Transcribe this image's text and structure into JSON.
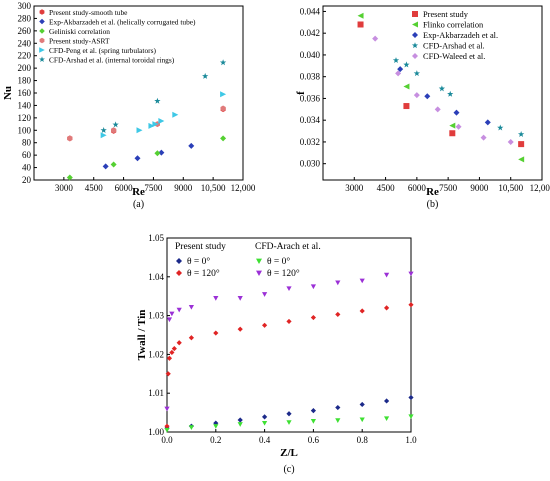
{
  "chart_data": [
    {
      "type": "scatter",
      "panel_label": "(a)",
      "xlabel": "Re",
      "ylabel": "Nu",
      "xlim": [
        1500,
        12000
      ],
      "ylim": [
        20,
        300
      ],
      "xticks": [
        3000,
        4500,
        6000,
        7500,
        9000,
        10500,
        12000
      ],
      "xtick_labels": [
        "3000",
        "4500",
        "6000",
        "7500",
        "9000",
        "10,500",
        "12,000"
      ],
      "yticks": [
        20,
        40,
        60,
        80,
        100,
        120,
        140,
        160,
        180,
        200,
        220,
        240,
        260,
        280,
        300
      ],
      "legend_position": "top-left",
      "series": [
        {
          "name": "Present study-smooth tube",
          "color": "#e03c3c",
          "marker": "hexagon",
          "x": [
            3300,
            5500,
            11000
          ],
          "y": [
            87,
            99,
            134
          ]
        },
        {
          "name": "Exp-Akbarzadeh et al. (helically corrugated tube)",
          "color": "#2b3fb8",
          "marker": "diamond",
          "x": [
            5100,
            6700,
            7900,
            9400
          ],
          "y": [
            42,
            55,
            64,
            75
          ]
        },
        {
          "name": "Geliniski correlation",
          "color": "#55d032",
          "marker": "diamond",
          "x": [
            3300,
            5500,
            7700,
            11000
          ],
          "y": [
            24,
            45,
            63,
            87
          ]
        },
        {
          "name": "Present study-ASRT",
          "color": "#e07a7a",
          "marker": "hexagon",
          "x": [
            3300,
            5500,
            7700,
            11000
          ],
          "y": [
            87,
            100,
            110,
            135
          ]
        },
        {
          "name": "CFD-Peng et al. (spring turbulators)",
          "color": "#3ec8e6",
          "marker": "triangle-right",
          "x": [
            5000,
            6800,
            7400,
            7600,
            7900,
            8600,
            11000
          ],
          "y": [
            92,
            100,
            107,
            110,
            115,
            125,
            158
          ]
        },
        {
          "name": "CFD-Arshad et al. (internal toroidal rings)",
          "color": "#1b8a9a",
          "marker": "star",
          "x": [
            5000,
            5600,
            7700,
            10100,
            11000
          ],
          "y": [
            100,
            109,
            147,
            187,
            209
          ]
        }
      ]
    },
    {
      "type": "scatter",
      "panel_label": "(b)",
      "xlabel": "Re",
      "ylabel": "f",
      "xlim": [
        1500,
        12000
      ],
      "ylim": [
        0.0285,
        0.0445
      ],
      "xticks": [
        3000,
        4500,
        6000,
        7500,
        9000,
        10500,
        12000
      ],
      "xtick_labels": [
        "3000",
        "4500",
        "6000",
        "7500",
        "9000",
        "10,500",
        "12,000"
      ],
      "yticks": [
        0.03,
        0.032,
        0.034,
        0.036,
        0.038,
        0.04,
        0.042,
        0.044
      ],
      "ytick_labels": [
        "0.030",
        "0.032",
        "0.034",
        "0.036",
        "0.038",
        "0.040",
        "0.042",
        "0.044"
      ],
      "legend_position": "top-right",
      "series": [
        {
          "name": "Present study",
          "color": "#e03c3c",
          "marker": "square",
          "x": [
            3300,
            5500,
            7700,
            11000
          ],
          "y": [
            0.0428,
            0.0353,
            0.0328,
            0.0318
          ]
        },
        {
          "name": "Flinko correlation",
          "color": "#55d032",
          "marker": "triangle-left",
          "x": [
            3300,
            5500,
            7700,
            11000
          ],
          "y": [
            0.0436,
            0.0371,
            0.0335,
            0.0304
          ]
        },
        {
          "name": "Exp-Akbarzadeh et al.",
          "color": "#2b3fb8",
          "marker": "diamond",
          "x": [
            5200,
            6500,
            7900,
            9400
          ],
          "y": [
            0.0387,
            0.0362,
            0.0347,
            0.0338
          ]
        },
        {
          "name": "CFD-Arshad et al.",
          "color": "#1b8a9a",
          "marker": "star",
          "x": [
            5000,
            5500,
            6000,
            7200,
            7600,
            10000,
            11000
          ],
          "y": [
            0.0395,
            0.0391,
            0.0383,
            0.0369,
            0.0364,
            0.0333,
            0.0327
          ]
        },
        {
          "name": "CFD-Waleed et al.",
          "color": "#c78fe0",
          "marker": "diamond",
          "x": [
            4000,
            5100,
            6000,
            7000,
            8000,
            9200,
            10500
          ],
          "y": [
            0.0415,
            0.0383,
            0.0363,
            0.035,
            0.0334,
            0.0324,
            0.032
          ]
        }
      ]
    },
    {
      "type": "scatter",
      "panel_label": "(c)",
      "xlabel": "Z/L",
      "ylabel": "Twall / Tin",
      "xlim": [
        0,
        1
      ],
      "ylim": [
        1.0,
        1.05
      ],
      "xticks": [
        0,
        0.2,
        0.4,
        0.6,
        0.8,
        1.0
      ],
      "xtick_labels": [
        "0.0",
        "0.2",
        "0.4",
        "0.6",
        "0.8",
        "1.0"
      ],
      "yticks": [
        1.0,
        1.01,
        1.02,
        1.03,
        1.04,
        1.05
      ],
      "ytick_labels": [
        "1.00",
        "1.01",
        "1.02",
        "1.03",
        "1.04",
        "1.05"
      ],
      "legend_headers": [
        "Present study",
        "CFD-Arach et al."
      ],
      "legend_position": "top-left",
      "series": [
        {
          "name": "θ = 0°",
          "group": "Present study",
          "color": "#1c2a8a",
          "marker": "diamond",
          "x": [
            0,
            0.1,
            0.2,
            0.3,
            0.4,
            0.5,
            0.6,
            0.7,
            0.8,
            0.9,
            1.0
          ],
          "y": [
            1.001,
            1.0015,
            1.0023,
            1.0031,
            1.0039,
            1.0047,
            1.0055,
            1.0063,
            1.0071,
            1.008,
            1.0089
          ]
        },
        {
          "name": "θ = 120°",
          "group": "Present study",
          "color": "#e02424",
          "marker": "diamond",
          "x": [
            0,
            0.005,
            0.01,
            0.02,
            0.03,
            0.05,
            0.1,
            0.2,
            0.3,
            0.4,
            0.5,
            0.6,
            0.7,
            0.8,
            0.9,
            1.0
          ],
          "y": [
            1.0015,
            1.015,
            1.019,
            1.0205,
            1.0215,
            1.023,
            1.0243,
            1.0255,
            1.0265,
            1.0275,
            1.0285,
            1.0295,
            1.0303,
            1.0312,
            1.032,
            1.0328
          ]
        },
        {
          "name": "θ = 0°",
          "group": "CFD-Arach et al.",
          "color": "#3ee032",
          "marker": "triangle-down",
          "x": [
            0,
            0.1,
            0.2,
            0.3,
            0.4,
            0.5,
            0.6,
            0.7,
            0.8,
            0.9,
            1.0
          ],
          "y": [
            1.0005,
            1.0012,
            1.0015,
            1.002,
            1.0023,
            1.0025,
            1.0028,
            1.003,
            1.0032,
            1.0035,
            1.004
          ]
        },
        {
          "name": "θ = 120°",
          "group": "CFD-Arach et al.",
          "color": "#9b30d6",
          "marker": "triangle-down",
          "x": [
            0,
            0.01,
            0.02,
            0.05,
            0.1,
            0.2,
            0.3,
            0.4,
            0.5,
            0.6,
            0.7,
            0.8,
            0.9,
            1.0
          ],
          "y": [
            1.006,
            1.029,
            1.0305,
            1.0315,
            1.0322,
            1.0345,
            1.0345,
            1.0355,
            1.037,
            1.0375,
            1.0385,
            1.039,
            1.0405,
            1.0408
          ]
        }
      ]
    }
  ]
}
